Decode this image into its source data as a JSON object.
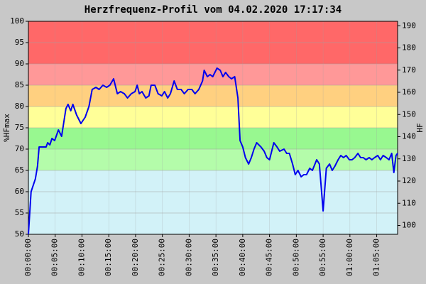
{
  "chart_data": {
    "type": "line",
    "title": "Herzfrequenz-Profil vom 04.02.2020 17:17:34",
    "y_label": "%HFmax",
    "y2_label": "HF",
    "color": "#0000ee",
    "grid": true,
    "xlim": [
      0,
      68.9
    ],
    "ylim": [
      50,
      100
    ],
    "y2lim": [
      96,
      192
    ],
    "yticks": [
      50,
      55,
      60,
      65,
      70,
      75,
      80,
      85,
      90,
      95,
      100
    ],
    "y2ticks": [
      100,
      110,
      120,
      130,
      140,
      150,
      160,
      170,
      180,
      190
    ],
    "xticks": [
      {
        "value": 0,
        "label": "00:00:00"
      },
      {
        "value": 5,
        "label": "00:05:00"
      },
      {
        "value": 10,
        "label": "00:10:00"
      },
      {
        "value": 15,
        "label": "00:15:00"
      },
      {
        "value": 20,
        "label": "00:20:00"
      },
      {
        "value": 25,
        "label": "00:25:00"
      },
      {
        "value": 30,
        "label": "00:30:00"
      },
      {
        "value": 35,
        "label": "00:35:00"
      },
      {
        "value": 40,
        "label": "00:40:00"
      },
      {
        "value": 45,
        "label": "00:45:00"
      },
      {
        "value": 50,
        "label": "00:50:00"
      },
      {
        "value": 55,
        "label": "00:55:00"
      },
      {
        "value": 60,
        "label": "01:00:00"
      },
      {
        "value": 65,
        "label": "01:05:00"
      }
    ],
    "zones": [
      {
        "from": 50,
        "to": 65,
        "color": "#d2f2f8"
      },
      {
        "from": 65,
        "to": 70,
        "color": "#b4fcaa"
      },
      {
        "from": 70,
        "to": 75,
        "color": "#98f890"
      },
      {
        "from": 75,
        "to": 80,
        "color": "#ffff98"
      },
      {
        "from": 80,
        "to": 85,
        "color": "#ffd080"
      },
      {
        "from": 85,
        "to": 90,
        "color": "#ff9898"
      },
      {
        "from": 90,
        "to": 100,
        "color": "#ff6868"
      }
    ],
    "x": [
      0,
      0.5,
      1.3,
      1.7,
      2.0,
      3.3,
      3.6,
      4.0,
      4.4,
      4.9,
      5.6,
      6.2,
      7.0,
      7.4,
      7.9,
      8.3,
      9.0,
      9.8,
      10.6,
      11.3,
      11.9,
      12.6,
      13.2,
      13.9,
      14.6,
      15.2,
      15.9,
      16.6,
      17.2,
      17.9,
      18.5,
      19.2,
      19.9,
      20.3,
      20.7,
      21.2,
      21.9,
      22.5,
      22.9,
      23.6,
      24.2,
      24.9,
      25.4,
      26.0,
      26.5,
      27.2,
      27.8,
      28.5,
      29.1,
      29.8,
      30.5,
      31.1,
      31.8,
      32.5,
      32.8,
      33.4,
      33.9,
      34.4,
      35.2,
      35.8,
      36.3,
      36.8,
      37.4,
      37.9,
      38.5,
      39.1,
      39.5,
      40.0,
      40.5,
      41.1,
      41.6,
      42.1,
      42.6,
      43.4,
      44.0,
      44.5,
      45.0,
      45.8,
      46.4,
      46.9,
      47.7,
      48.2,
      48.7,
      49.3,
      49.8,
      50.3,
      50.9,
      51.4,
      51.9,
      52.5,
      53.0,
      53.8,
      54.3,
      55.0,
      55.6,
      56.2,
      56.7,
      57.2,
      57.8,
      58.3,
      58.8,
      59.3,
      59.9,
      60.4,
      60.9,
      61.5,
      62.0,
      62.5,
      63.0,
      63.6,
      64.1,
      64.6,
      65.2,
      65.7,
      66.2,
      66.8,
      67.3,
      67.8,
      68.2,
      68.6,
      68.9
    ],
    "values": [
      50,
      60,
      63,
      66,
      70.5,
      70.5,
      71.5,
      71,
      72.5,
      72,
      74.5,
      73,
      79.5,
      80.5,
      79,
      80.5,
      78,
      76,
      77.5,
      80,
      84,
      84.5,
      84,
      85,
      84.5,
      85,
      86.5,
      83,
      83.5,
      83,
      82,
      83,
      83.5,
      85,
      83,
      83.5,
      82,
      82.5,
      85,
      85,
      83,
      82.5,
      83.5,
      82,
      83,
      86,
      84,
      84,
      83,
      84,
      84,
      83,
      84,
      86,
      88.5,
      87,
      87.5,
      87,
      89,
      88.5,
      87,
      88,
      87,
      86.5,
      87,
      82,
      72,
      70.5,
      68,
      66.5,
      68,
      70,
      71.5,
      70.5,
      69.5,
      68,
      67.5,
      71.5,
      70.5,
      69.5,
      70,
      69,
      69,
      66.5,
      64,
      65,
      63.5,
      64,
      64,
      65.5,
      65,
      67.5,
      66.5,
      55.5,
      65.5,
      66.5,
      65,
      66,
      67.5,
      68.5,
      68,
      68.5,
      67.5,
      67.5,
      68,
      69,
      68,
      68,
      67.5,
      68,
      67.5,
      68,
      68.5,
      67.5,
      68.5,
      68,
      67.5,
      69,
      64.5,
      68.5,
      69
    ]
  }
}
